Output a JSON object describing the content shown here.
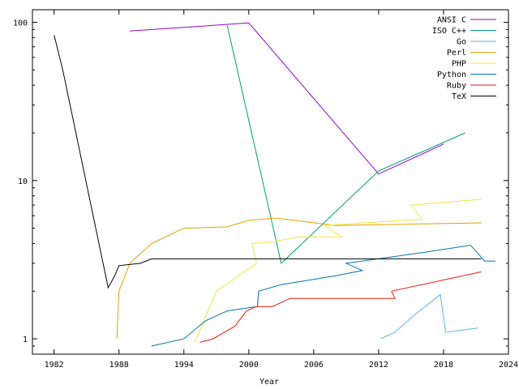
{
  "chart_data": {
    "type": "line",
    "xlabel": "Year",
    "ylabel": "",
    "title": "",
    "xlim": [
      1980,
      2024
    ],
    "ylim": [
      0.8,
      120
    ],
    "yscale": "log",
    "x_ticks": [
      1982,
      1988,
      1994,
      2000,
      2006,
      2012,
      2018,
      2024
    ],
    "y_ticks": [
      1,
      10,
      100
    ],
    "y_tick_labels": [
      "1",
      "10",
      "100"
    ],
    "grid": false,
    "legend_position": "top-right",
    "series": [
      {
        "name": "ANSI C",
        "color": "#9400d3",
        "points": [
          [
            1989,
            88
          ],
          [
            2000,
            99
          ],
          [
            2012,
            11
          ],
          [
            2018,
            17
          ]
        ]
      },
      {
        "name": "ISO C++",
        "color": "#009e73",
        "points": [
          [
            1998,
            96
          ],
          [
            2003,
            3
          ],
          [
            2012,
            11.5
          ],
          [
            2020,
            20
          ]
        ]
      },
      {
        "name": "Go",
        "color": "#56b4e9",
        "points": [
          [
            2012.2,
            1.0
          ],
          [
            2013.5,
            1.1
          ],
          [
            2015.5,
            1.45
          ],
          [
            2017.7,
            1.9
          ],
          [
            2018.2,
            1.1
          ],
          [
            2021.2,
            1.17
          ]
        ]
      },
      {
        "name": "Perl",
        "color": "#e69f00",
        "points": [
          [
            1987.8,
            1.0
          ],
          [
            1988,
            2.0
          ],
          [
            1989,
            3.0
          ],
          [
            1991,
            4.0
          ],
          [
            1994,
            5.0
          ],
          [
            1998,
            5.1
          ],
          [
            2000,
            5.6
          ],
          [
            2002.5,
            5.8
          ],
          [
            2008,
            5.2
          ],
          [
            2021.5,
            5.4
          ]
        ]
      },
      {
        "name": "PHP",
        "color": "#f0e442",
        "points": [
          [
            1995,
            0.95
          ],
          [
            1997,
            2.0
          ],
          [
            2000.7,
            3.0
          ],
          [
            2000.3,
            4.0
          ],
          [
            2002.2,
            4.1
          ],
          [
            2004.5,
            4.4
          ],
          [
            2008.6,
            4.4
          ],
          [
            2007,
            5.2
          ],
          [
            2016,
            5.7
          ],
          [
            2015,
            7.0
          ],
          [
            2021.5,
            7.6
          ]
        ]
      },
      {
        "name": "Python",
        "color": "#0072b2",
        "points": [
          [
            1991,
            0.9
          ],
          [
            1994,
            1.0
          ],
          [
            1996,
            1.3
          ],
          [
            1998,
            1.5
          ],
          [
            2000.8,
            1.6
          ],
          [
            2000.9,
            2.0
          ],
          [
            2003,
            2.2
          ],
          [
            2008,
            2.5
          ],
          [
            2010.5,
            2.7
          ],
          [
            2009,
            3.0
          ],
          [
            2016,
            3.5
          ],
          [
            2020.5,
            3.9
          ],
          [
            2021.8,
            3.1
          ],
          [
            2022.8,
            3.1
          ]
        ]
      },
      {
        "name": "Ruby",
        "color": "#e51e10",
        "points": [
          [
            1995.5,
            0.95
          ],
          [
            1996.7,
            1.0
          ],
          [
            1998.7,
            1.2
          ],
          [
            1999.8,
            1.5
          ],
          [
            2000.7,
            1.6
          ],
          [
            2002.2,
            1.6
          ],
          [
            2003.8,
            1.8
          ],
          [
            2008.4,
            1.8
          ],
          [
            2013.5,
            1.8
          ],
          [
            2013.2,
            2.0
          ],
          [
            2021.5,
            2.65
          ]
        ]
      },
      {
        "name": "TeX",
        "color": "#000000",
        "points": [
          [
            1982,
            83
          ],
          [
            1982.8,
            50
          ],
          [
            1987,
            2.1
          ],
          [
            1987.6,
            2.5
          ],
          [
            1988,
            2.9
          ],
          [
            1990,
            3.0
          ],
          [
            1991,
            3.2
          ],
          [
            2012,
            3.2
          ],
          [
            2021.5,
            3.2
          ]
        ]
      }
    ]
  }
}
